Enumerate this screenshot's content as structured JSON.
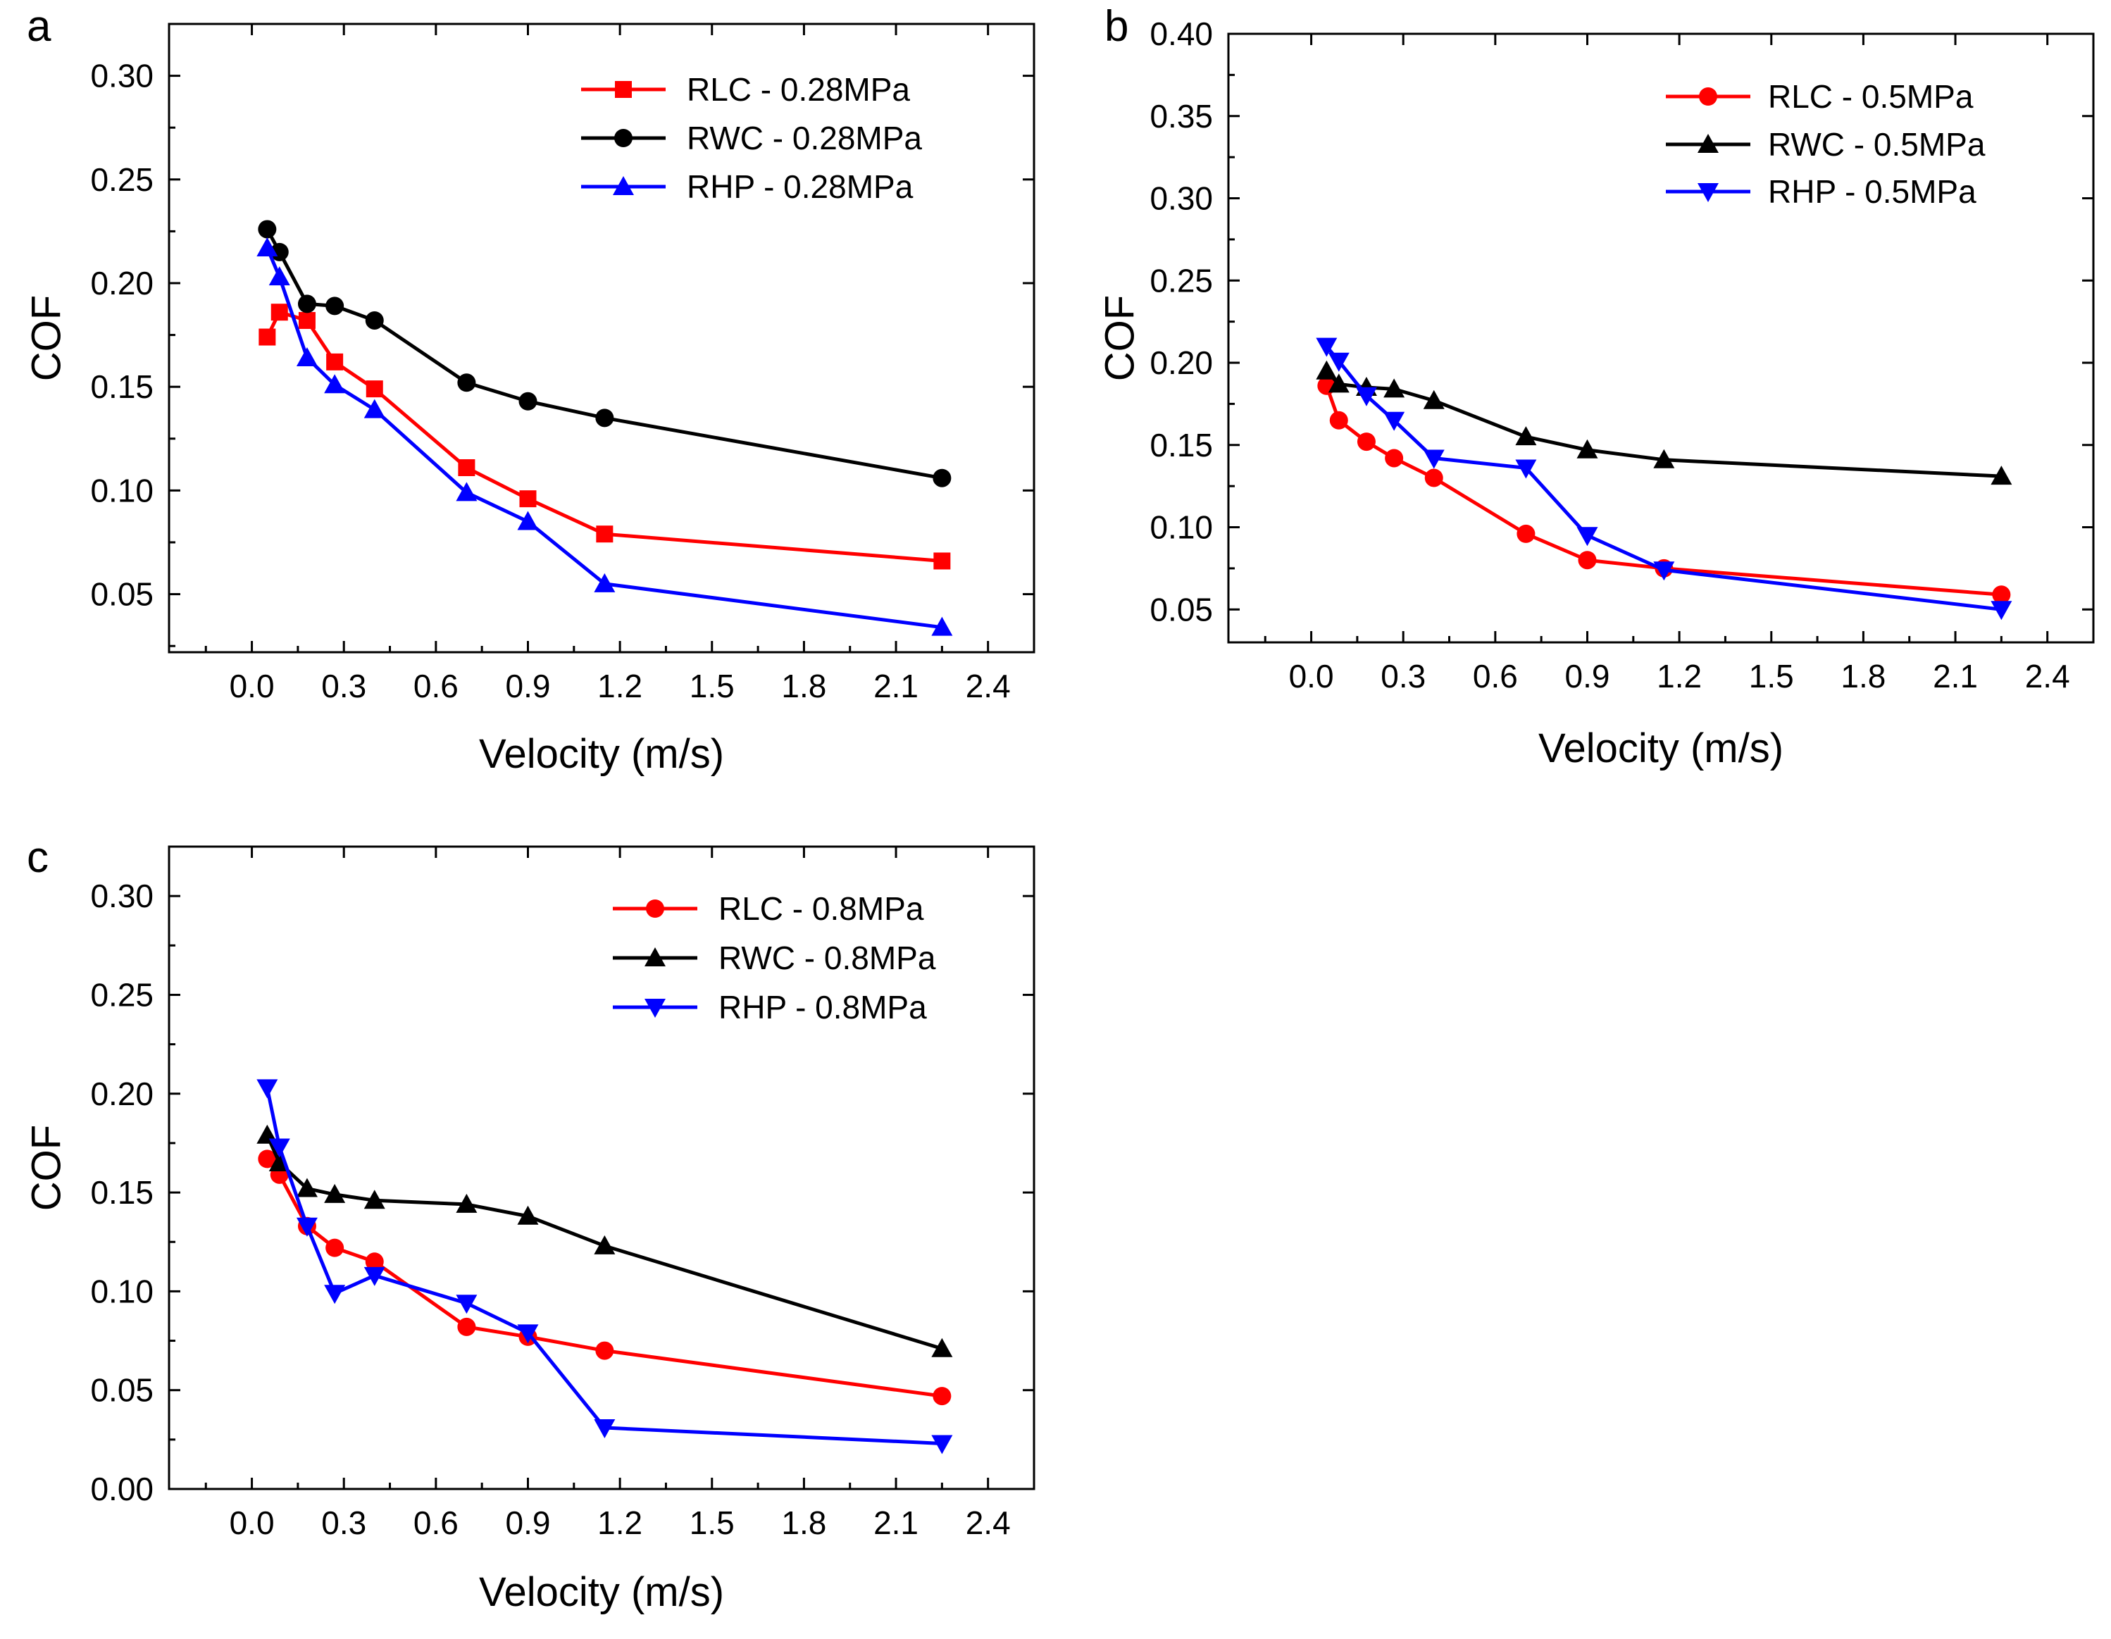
{
  "figure": {
    "charts": [
      {
        "panel": "a",
        "type": "line",
        "xlabel": "Velocity (m/s)",
        "ylabel": "COF",
        "xlim": [
          -0.27,
          2.55
        ],
        "ylim": [
          0.022,
          0.325
        ],
        "xticks": [
          "0.0",
          "0.3",
          "0.6",
          "0.9",
          "1.2",
          "1.5",
          "1.8",
          "2.1",
          "2.4"
        ],
        "yticks": [
          "0.05",
          "0.10",
          "0.15",
          "0.20",
          "0.25",
          "0.30"
        ],
        "x": [
          0.05,
          0.09,
          0.18,
          0.27,
          0.4,
          0.7,
          0.9,
          1.15,
          2.25
        ],
        "legend_position": "top-right",
        "series": [
          {
            "name": "RLC - 0.28MPa",
            "color": "#ff0000",
            "marker": "square",
            "values": [
              0.174,
              0.186,
              0.182,
              0.162,
              0.149,
              0.111,
              0.096,
              0.079,
              0.066
            ]
          },
          {
            "name": "RWC - 0.28MPa",
            "color": "#000000",
            "marker": "circle",
            "values": [
              0.226,
              0.215,
              0.19,
              0.189,
              0.182,
              0.152,
              0.143,
              0.135,
              0.106
            ]
          },
          {
            "name": "RHP - 0.28MPa",
            "color": "#0000ff",
            "marker": "triangle-up",
            "values": [
              0.217,
              0.203,
              0.164,
              0.151,
              0.139,
              0.099,
              0.085,
              0.055,
              0.034
            ]
          }
        ]
      },
      {
        "panel": "b",
        "type": "line",
        "xlabel": "Velocity (m/s)",
        "ylabel": "COF",
        "xlim": [
          -0.27,
          2.55
        ],
        "ylim": [
          0.03,
          0.4
        ],
        "xticks": [
          "0.0",
          "0.3",
          "0.6",
          "0.9",
          "1.2",
          "1.5",
          "1.8",
          "2.1",
          "2.4"
        ],
        "yticks": [
          "0.05",
          "0.10",
          "0.15",
          "0.20",
          "0.25",
          "0.30",
          "0.35",
          "0.40"
        ],
        "x": [
          0.05,
          0.09,
          0.18,
          0.27,
          0.4,
          0.7,
          0.9,
          1.15,
          2.25
        ],
        "legend_position": "top-right",
        "series": [
          {
            "name": "RLC - 0.5MPa",
            "color": "#ff0000",
            "marker": "circle",
            "values": [
              0.186,
              0.165,
              0.152,
              0.142,
              0.13,
              0.096,
              0.08,
              0.075,
              0.059
            ]
          },
          {
            "name": "RWC - 0.5MPa",
            "color": "#000000",
            "marker": "triangle-up",
            "values": [
              0.195,
              0.187,
              0.185,
              0.184,
              0.177,
              0.155,
              0.147,
              0.141,
              0.131
            ]
          },
          {
            "name": "RHP - 0.5MPa",
            "color": "#0000ff",
            "marker": "triangle-down",
            "values": [
              0.21,
              0.201,
              0.18,
              0.165,
              0.142,
              0.136,
              0.095,
              0.074,
              0.05
            ]
          }
        ]
      },
      {
        "panel": "c",
        "type": "line",
        "xlabel": "Velocity (m/s)",
        "ylabel": "COF",
        "xlim": [
          -0.27,
          2.55
        ],
        "ylim": [
          0.0,
          0.325
        ],
        "xticks": [
          "0.0",
          "0.3",
          "0.6",
          "0.9",
          "1.2",
          "1.5",
          "1.8",
          "2.1",
          "2.4"
        ],
        "yticks": [
          "0.00",
          "0.05",
          "0.10",
          "0.15",
          "0.20",
          "0.25",
          "0.30"
        ],
        "x": [
          0.05,
          0.09,
          0.18,
          0.27,
          0.4,
          0.7,
          0.9,
          1.15,
          2.25
        ],
        "legend_position": "top-right",
        "series": [
          {
            "name": "RLC - 0.8MPa",
            "color": "#ff0000",
            "marker": "circle",
            "values": [
              0.167,
              0.159,
              0.133,
              0.122,
              0.115,
              0.082,
              0.077,
              0.07,
              0.047
            ]
          },
          {
            "name": "RWC - 0.8MPa",
            "color": "#000000",
            "marker": "triangle-up",
            "values": [
              0.179,
              0.165,
              0.152,
              0.149,
              0.146,
              0.144,
              0.138,
              0.123,
              0.071
            ]
          },
          {
            "name": "RHP - 0.8MPa",
            "color": "#0000ff",
            "marker": "triangle-down",
            "values": [
              0.203,
              0.173,
              0.133,
              0.099,
              0.108,
              0.094,
              0.079,
              0.031,
              0.023
            ]
          }
        ]
      }
    ]
  }
}
